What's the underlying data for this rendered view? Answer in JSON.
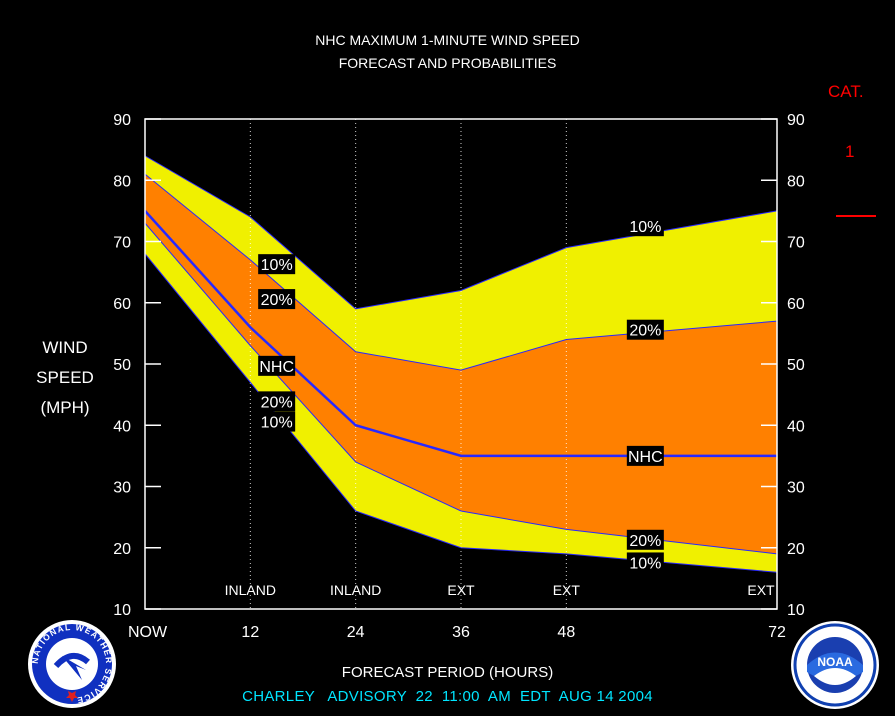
{
  "title_line1": "NHC MAXIMUM 1-MINUTE WIND SPEED",
  "title_line2": "FORECAST AND PROBABILITIES",
  "category": {
    "label": "CAT.",
    "value": "1",
    "line_color": "#ff0000"
  },
  "y_axis_label": [
    "WIND",
    "SPEED",
    "(MPH)"
  ],
  "x_axis_title": "FORECAST PERIOD (HOURS)",
  "advisory_line": "CHARLEY   ADVISORY  22  11:00  AM  EDT  AUG 14 2004",
  "colors": {
    "background": "#000000",
    "band_10": "#f0f000",
    "band_20": "#ff8000",
    "nhc_line": "#2828ff",
    "frame": "#ffffff",
    "advisory_text": "#00e5ff"
  },
  "logos": {
    "nws_text": "NATIONAL WEATHER SERVICE",
    "noaa_text": "NOAA"
  },
  "chart_data": {
    "type": "area",
    "x": [
      0,
      12,
      24,
      36,
      48,
      72
    ],
    "xlim": [
      0,
      72
    ],
    "ylim": [
      10,
      90
    ],
    "y_ticks": [
      10,
      20,
      30,
      40,
      50,
      60,
      70,
      80,
      90
    ],
    "x_tick_labels": [
      {
        "x": 0,
        "label": "NOW"
      },
      {
        "x": 12,
        "label": "12"
      },
      {
        "x": 24,
        "label": "24"
      },
      {
        "x": 36,
        "label": "36"
      },
      {
        "x": 48,
        "label": "48"
      },
      {
        "x": 72,
        "label": "72"
      }
    ],
    "period_labels": [
      {
        "x": 12,
        "label": "INLAND"
      },
      {
        "x": 24,
        "label": "INLAND"
      },
      {
        "x": 36,
        "label": "EXT"
      },
      {
        "x": 48,
        "label": "EXT"
      },
      {
        "x": 72,
        "label": "EXT"
      }
    ],
    "series": [
      {
        "name": "10%",
        "role": "upper_10",
        "x": [
          0,
          12,
          24,
          36,
          48,
          72
        ],
        "values": [
          84,
          74,
          59,
          62,
          69,
          75
        ]
      },
      {
        "name": "20%",
        "role": "upper_20",
        "x": [
          0,
          12,
          24,
          36,
          48,
          72
        ],
        "values": [
          81,
          67,
          52,
          49,
          54,
          57
        ]
      },
      {
        "name": "NHC",
        "role": "nhc",
        "x": [
          0,
          12,
          24,
          36,
          48,
          72
        ],
        "values": [
          75,
          56,
          40,
          35,
          35,
          35
        ]
      },
      {
        "name": "20%",
        "role": "lower_20",
        "x": [
          0,
          12,
          24,
          36,
          48,
          72
        ],
        "values": [
          73,
          53,
          34,
          26,
          23,
          19
        ]
      },
      {
        "name": "10%",
        "role": "lower_10",
        "x": [
          0,
          12,
          24,
          36,
          48,
          72
        ],
        "values": [
          68,
          47,
          26,
          20,
          19,
          16
        ]
      }
    ],
    "curve_labels": [
      {
        "text": "10%",
        "x": 15.0,
        "y": 66.3
      },
      {
        "text": "20%",
        "x": 15.0,
        "y": 60.6
      },
      {
        "text": "NHC",
        "x": 15.0,
        "y": 49.7
      },
      {
        "text": "20%",
        "x": 15.0,
        "y": 43.9
      },
      {
        "text": "10%",
        "x": 15.0,
        "y": 40.6
      },
      {
        "text": "10%",
        "x": 57.0,
        "y": 72.5
      },
      {
        "text": "20%",
        "x": 57.0,
        "y": 55.6
      },
      {
        "text": "NHC",
        "x": 57.0,
        "y": 35.0
      },
      {
        "text": "20%",
        "x": 57.0,
        "y": 21.3
      },
      {
        "text": "10%",
        "x": 57.0,
        "y": 17.6
      }
    ]
  }
}
